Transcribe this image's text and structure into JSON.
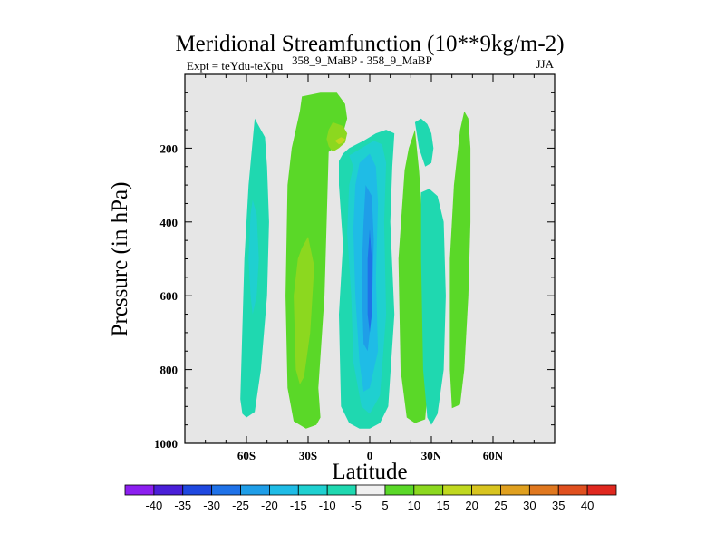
{
  "chart_data": {
    "type": "contour",
    "title": "Meridional Streamfunction (10**9kg/m-2)",
    "subtitle_left": "Expt = teYdu-teXpu",
    "subtitle_center": "358_9_MaBP - 358_9_MaBP",
    "subtitle_right": "JJA",
    "xlabel": "Latitude",
    "ylabel": "Pressure (in hPa)",
    "xlim": [
      -90,
      90
    ],
    "ylim": [
      1000,
      0
    ],
    "y_inverted": true,
    "x_ticks": [
      {
        "value": -60,
        "label": "60S"
      },
      {
        "value": -30,
        "label": "30S"
      },
      {
        "value": 0,
        "label": "0"
      },
      {
        "value": 30,
        "label": "30N"
      },
      {
        "value": 60,
        "label": "60N"
      }
    ],
    "y_ticks": [
      {
        "value": 200,
        "label": "200"
      },
      {
        "value": 400,
        "label": "400"
      },
      {
        "value": 600,
        "label": "600"
      },
      {
        "value": 800,
        "label": "800"
      },
      {
        "value": 1000,
        "label": "1000"
      }
    ],
    "background_color": "#e6e6e6",
    "colorbar": {
      "levels": [
        "-40",
        "-35",
        "-30",
        "-25",
        "-20",
        "-15",
        "-10",
        "-5",
        "5",
        "10",
        "15",
        "20",
        "25",
        "30",
        "35",
        "40"
      ],
      "colors": [
        "#8c1ff0",
        "#4a1fd8",
        "#1f48e0",
        "#1f72e8",
        "#1f9ee8",
        "#1fbce6",
        "#1fd0d0",
        "#1fd8b0",
        "#f0f0f0",
        "#5ad828",
        "#8cd81f",
        "#c0d81f",
        "#d8c41f",
        "#e0a01f",
        "#e0781f",
        "#e0501f",
        "#e0281f"
      ]
    },
    "contours": [
      {
        "name": "cell-60s",
        "level": -10,
        "color": "#1fd8b0",
        "lon": [
          -56,
          -54,
          -51,
          -50,
          -49,
          -50,
          -53,
          -56,
          -60,
          -62,
          -63,
          -61,
          -59,
          -57
        ],
        "p": [
          120,
          140,
          170,
          250,
          400,
          600,
          800,
          915,
          930,
          920,
          880,
          500,
          300,
          180
        ]
      },
      {
        "name": "core-60s",
        "level": -15,
        "color": "#1fd0d0",
        "lon": [
          -57,
          -55,
          -54,
          -55,
          -57,
          -58,
          -59,
          -58
        ],
        "p": [
          340,
          380,
          500,
          600,
          650,
          600,
          500,
          380
        ]
      },
      {
        "name": "cell-30s-outer",
        "level": 5,
        "color": "#5ad828",
        "lon": [
          -33,
          -24,
          -16,
          -12,
          -11,
          -13,
          -15,
          -20,
          -22,
          -25,
          -24,
          -26,
          -31,
          -37,
          -40,
          -41,
          -40,
          -38,
          -36,
          -34
        ],
        "p": [
          60,
          50,
          50,
          80,
          120,
          160,
          190,
          210,
          600,
          850,
          930,
          950,
          960,
          940,
          850,
          600,
          300,
          200,
          150,
          100
        ]
      },
      {
        "name": "cell-30s-inner",
        "level": 10,
        "color": "#8cd81f",
        "lon": [
          -30,
          -27,
          -29,
          -32,
          -34,
          -36,
          -37,
          -35,
          -33
        ],
        "p": [
          440,
          520,
          700,
          820,
          840,
          800,
          600,
          500,
          470
        ]
      },
      {
        "name": "upper-max",
        "level": 10,
        "color": "#8cd81f",
        "lon": [
          -18,
          -13,
          -11,
          -12,
          -15,
          -18,
          -20,
          -21,
          -20
        ],
        "p": [
          130,
          140,
          160,
          185,
          200,
          210,
          195,
          175,
          150
        ]
      },
      {
        "name": "upper-max-core",
        "level": 15,
        "color": "#c0d81f",
        "lon": [
          -14,
          -12,
          -13,
          -15,
          -17
        ],
        "p": [
          170,
          175,
          185,
          190,
          180
        ]
      },
      {
        "name": "cell-eq-outer",
        "level": -5,
        "color": "#1fd8b0",
        "lon": [
          -10,
          -3,
          3,
          8,
          12,
          11,
          10,
          12,
          9,
          5,
          0,
          -5,
          -10,
          -14,
          -15,
          -13,
          -15,
          -15,
          -13
        ],
        "p": [
          200,
          180,
          160,
          150,
          160,
          250,
          400,
          650,
          900,
          945,
          960,
          960,
          945,
          900,
          650,
          460,
          300,
          235,
          215
        ]
      },
      {
        "name": "cell-eq-mid",
        "level": -10,
        "color": "#1fd0d0",
        "lon": [
          -10,
          -4,
          2,
          6,
          8,
          7,
          8,
          5,
          0,
          -4,
          -8,
          -9,
          -11,
          -10,
          -8
        ],
        "p": [
          220,
          200,
          180,
          190,
          240,
          400,
          650,
          870,
          920,
          900,
          780,
          600,
          430,
          300,
          250
        ]
      },
      {
        "name": "cell-eq-inner",
        "level": -15,
        "color": "#1fbce6",
        "lon": [
          -5,
          0,
          3,
          4,
          3,
          4,
          0,
          -3,
          -5,
          -7,
          -8,
          -7
        ],
        "p": [
          240,
          215,
          250,
          350,
          550,
          750,
          850,
          860,
          780,
          600,
          420,
          300
        ]
      },
      {
        "name": "cell-eq-core",
        "level": -20,
        "color": "#1f9ee8",
        "lon": [
          -2,
          1,
          2,
          1,
          -1,
          -3,
          -4,
          -3
        ],
        "p": [
          300,
          330,
          450,
          650,
          750,
          730,
          550,
          400
        ]
      },
      {
        "name": "cell-eq-peak",
        "level": -25,
        "color": "#1f72e8",
        "lon": [
          0,
          1,
          1,
          0,
          -1,
          -1
        ],
        "p": [
          420,
          500,
          650,
          700,
          650,
          500
        ]
      },
      {
        "name": "cell-20n",
        "level": 5,
        "color": "#5ad828",
        "lon": [
          17,
          19,
          22,
          24,
          27,
          29,
          27,
          22,
          18,
          15,
          14
        ],
        "p": [
          260,
          200,
          150,
          260,
          500,
          800,
          935,
          945,
          930,
          800,
          500
        ]
      },
      {
        "name": "cell-30n-upper",
        "level": -5,
        "color": "#1fd8b0",
        "lon": [
          22,
          25,
          28,
          30,
          31,
          30,
          27,
          24
        ],
        "p": [
          130,
          120,
          135,
          160,
          200,
          240,
          250,
          200
        ]
      },
      {
        "name": "cell-30n-lower",
        "level": -5,
        "color": "#1fd8b0",
        "lon": [
          25,
          29,
          33,
          36,
          37,
          36,
          33,
          30,
          28,
          26,
          25
        ],
        "p": [
          320,
          310,
          330,
          400,
          600,
          800,
          920,
          950,
          930,
          800,
          500
        ]
      },
      {
        "name": "cell-50n",
        "level": 5,
        "color": "#5ad828",
        "lon": [
          46,
          48,
          49,
          49,
          48,
          46,
          44,
          40,
          39,
          39,
          41,
          44
        ],
        "p": [
          100,
          120,
          200,
          400,
          600,
          800,
          895,
          905,
          800,
          500,
          300,
          150
        ]
      }
    ]
  }
}
